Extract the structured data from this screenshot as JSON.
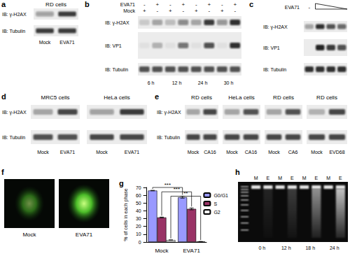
{
  "panels": {
    "a": {
      "letter": "a",
      "title": "RD cells",
      "rows": [
        "IB: γ-H2AX",
        "IB: Tubulin"
      ],
      "lanes": [
        "Mock",
        "EVA71"
      ],
      "bands": [
        [
          0.35,
          0.8
        ],
        [
          0.8,
          0.8
        ]
      ]
    },
    "b": {
      "letter": "b",
      "conditions": [
        {
          "name": "EVA71",
          "signs": [
            "-",
            "+",
            "-",
            "+",
            "-",
            "+",
            "-",
            "+"
          ]
        },
        {
          "name": "Mock",
          "signs": [
            "+",
            "-",
            "+",
            "-",
            "+",
            "-",
            "+",
            "-"
          ]
        }
      ],
      "rows": [
        "IB: γ-H2AX",
        "IB: VP1",
        "IB: Tubulin"
      ],
      "bands": [
        [
          0.15,
          0.3,
          0.2,
          0.45,
          0.3,
          0.8,
          0.4,
          0.85
        ],
        [
          0.05,
          0.25,
          0.05,
          0.55,
          0.05,
          0.7,
          0.05,
          0.85
        ],
        [
          0.7,
          0.7,
          0.7,
          0.7,
          0.7,
          0.7,
          0.7,
          0.7
        ]
      ],
      "times": [
        "6 h",
        "12 h",
        "24 h",
        "30 h"
      ]
    },
    "c": {
      "letter": "c",
      "condition": "EVA71",
      "first_sign": "-",
      "rows": [
        "IB: γ-H2AX",
        "IB: VP1",
        "IB: Tubulin"
      ],
      "bands": [
        [
          0.3,
          0.85,
          0.7,
          0.6
        ],
        [
          0.0,
          0.9,
          0.8,
          0.7
        ],
        [
          0.85,
          0.85,
          0.85,
          0.85
        ]
      ]
    },
    "d": {
      "letter": "d",
      "rows": [
        "IB: γ-H2AX",
        "IB: Tubulin"
      ],
      "blots": [
        {
          "title": "MRC5 cells",
          "lanes": [
            "Mock",
            "EVA71"
          ],
          "bands": [
            [
              0.3,
              0.75
            ],
            [
              0.7,
              0.7
            ]
          ]
        },
        {
          "title": "HeLa cells",
          "lanes": [
            "Mock",
            "EVA71"
          ],
          "bands": [
            [
              0.35,
              0.8
            ],
            [
              0.75,
              0.75
            ]
          ]
        }
      ]
    },
    "e": {
      "letter": "e",
      "rows": [
        "IB: γ-H2AX",
        "IB: Tubulin"
      ],
      "blots": [
        {
          "title": "RD cells",
          "lanes": [
            "Mock",
            "CA16"
          ],
          "bands": [
            [
              0.3,
              0.75
            ],
            [
              0.75,
              0.75
            ]
          ]
        },
        {
          "title": "HeLa cells",
          "lanes": [
            "Mock",
            "CA16"
          ],
          "bands": [
            [
              0.3,
              0.7
            ],
            [
              0.75,
              0.75
            ]
          ]
        },
        {
          "title": "RD cells",
          "lanes": [
            "Mock",
            "CA6"
          ],
          "bands": [
            [
              0.3,
              0.7
            ],
            [
              0.75,
              0.75
            ]
          ]
        },
        {
          "title": "RD cells",
          "lanes": [
            "Mock",
            "EVD68"
          ],
          "bands": [
            [
              0.25,
              0.75
            ],
            [
              0.75,
              0.75
            ]
          ]
        }
      ]
    },
    "f": {
      "letter": "f",
      "images": [
        {
          "label": "Mock",
          "intensity": 0.55
        },
        {
          "label": "EVA71",
          "intensity": 1
        }
      ]
    },
    "g": {
      "letter": "g"
    },
    "h": {
      "letter": "h",
      "lanes": [
        "M",
        "E",
        "M",
        "E",
        "M",
        "E",
        "M",
        "E"
      ],
      "times": [
        "0 h",
        "12 h",
        "18 h",
        "24 h"
      ],
      "smear": [
        0,
        0.1,
        0,
        0.2,
        0,
        0.55,
        0,
        0.75
      ]
    }
  },
  "chart_data": {
    "type": "bar",
    "categories": [
      "Mock",
      "EVA71"
    ],
    "series": [
      {
        "name": "G0/G1",
        "color": "#9999ff",
        "values": [
          66,
          57.5
        ],
        "errors": [
          0.3,
          1.2
        ]
      },
      {
        "name": "S",
        "color": "#993366",
        "values": [
          31.5,
          42.5
        ],
        "errors": [
          0.5,
          1.2
        ]
      },
      {
        "name": "G2",
        "color": "#ffffff",
        "values": [
          2.5,
          0.5
        ],
        "errors": [
          0.3,
          0.2
        ]
      }
    ],
    "y_label": "% of cells in each phase",
    "ylim": [
      0,
      70
    ],
    "yticks": [
      0,
      10,
      20,
      30,
      40,
      50,
      60,
      70
    ],
    "grid": false,
    "legend": "right",
    "significance": [
      {
        "series": "G0/G1",
        "label": "***"
      },
      {
        "series": "S",
        "label": "***"
      },
      {
        "series": "G2",
        "label": "**"
      }
    ]
  }
}
